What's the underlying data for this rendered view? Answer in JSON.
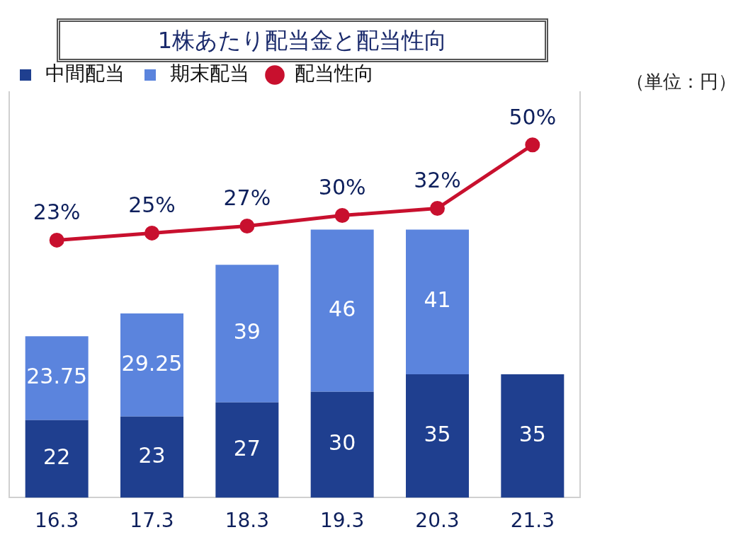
{
  "chart_data": {
    "type": "bar",
    "title": "1株あたり配当金と配当性向",
    "categories": [
      "16.3",
      "17.3",
      "18.3",
      "19.3",
      "20.3",
      "21.3"
    ],
    "stacked": true,
    "data_labels": true,
    "legend": "top left",
    "grid": false,
    "tick_labels": "x",
    "ylim": [
      0,
      115
    ],
    "y2lim": [
      -50,
      65
    ],
    "marker": "circle",
    "line_style": "solid",
    "annotations": [
      "（単位：円）"
    ],
    "series": [
      {
        "name": "中間配当",
        "color": "#1f3f8f",
        "values": [
          22,
          23,
          27,
          30,
          35,
          35
        ]
      },
      {
        "name": "期末配当",
        "color": "#5b84dd",
        "values": [
          23.75,
          29.25,
          39,
          46,
          41,
          null
        ]
      },
      {
        "name": "配当性向",
        "type": "line",
        "axis": "y2",
        "color": "#c8102e",
        "values": [
          23,
          25,
          27,
          30,
          32,
          50
        ],
        "value_labels": [
          "23%",
          "25%",
          "27%",
          "30%",
          "32%",
          "50%"
        ]
      }
    ]
  }
}
